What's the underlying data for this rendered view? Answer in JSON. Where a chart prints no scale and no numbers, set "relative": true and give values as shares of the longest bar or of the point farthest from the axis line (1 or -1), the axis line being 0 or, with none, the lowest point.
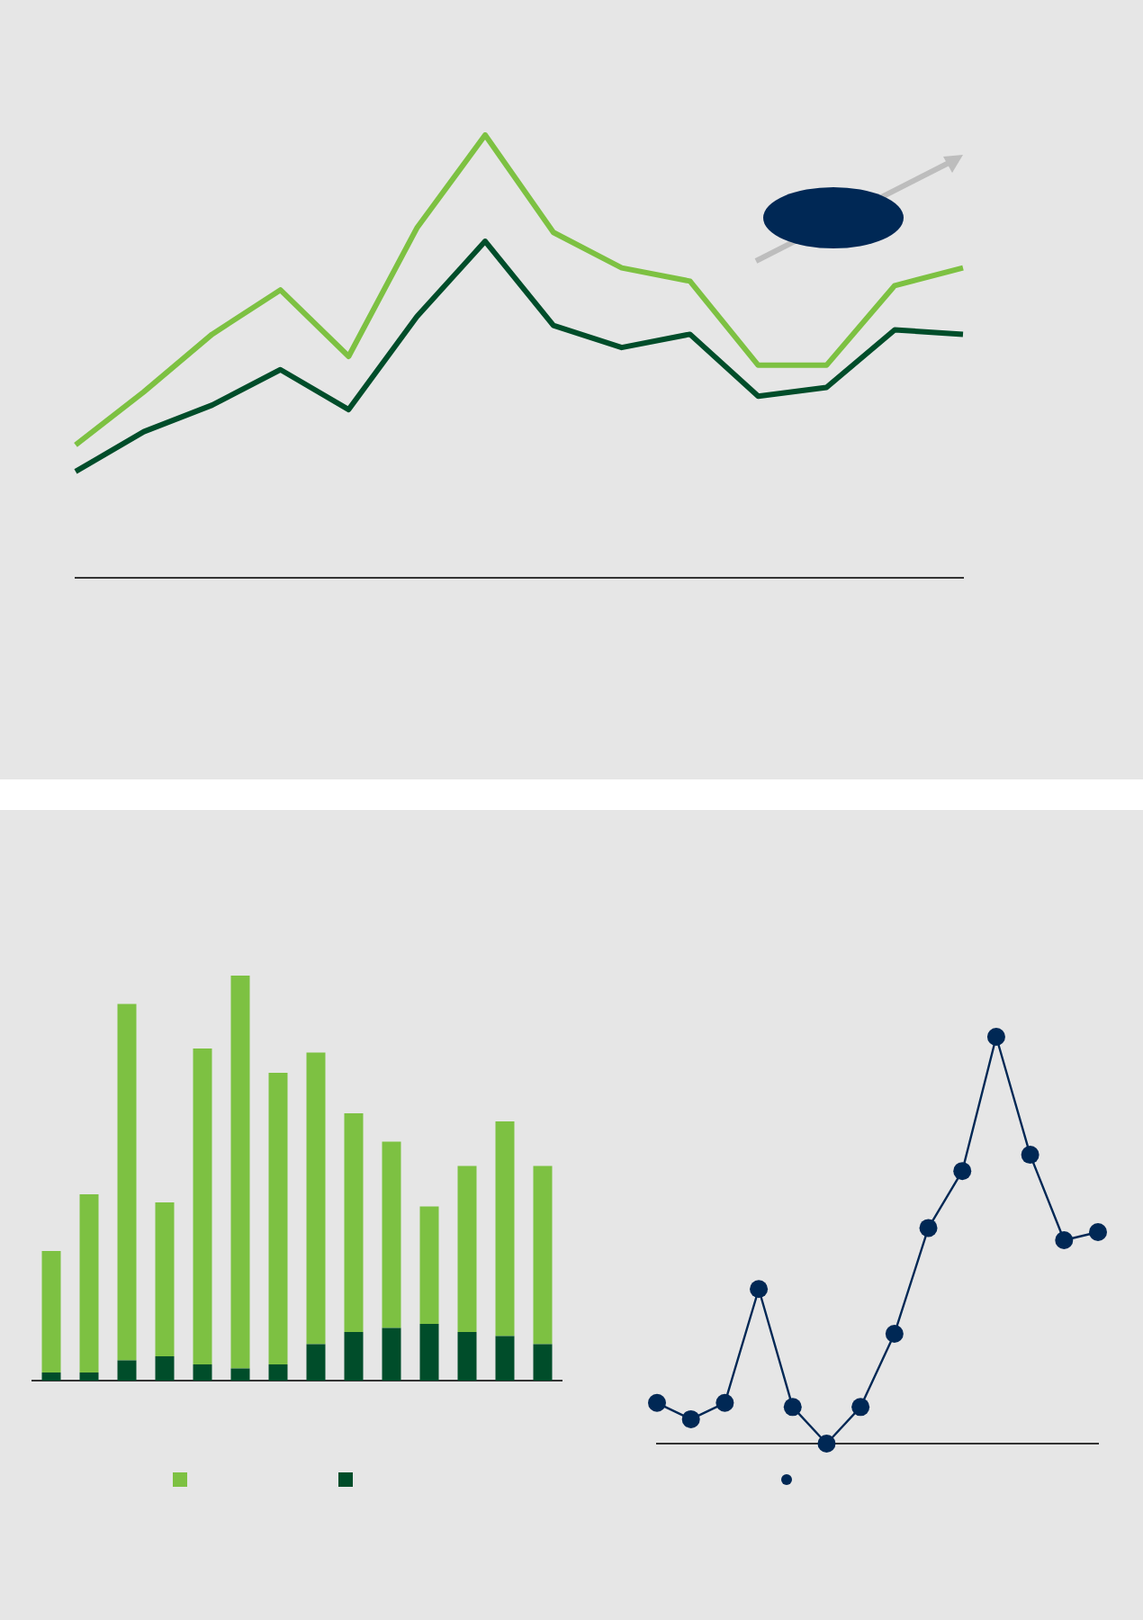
{
  "chart_data": [
    {
      "type": "line",
      "relative": true,
      "line_style": "solid",
      "categories": [
        null,
        null,
        null,
        null,
        null,
        null,
        null,
        null,
        null,
        null,
        null,
        null,
        null,
        null
      ],
      "series": [
        {
          "color": "#7dc142",
          "values": [
            0.3,
            0.42,
            0.55,
            0.65,
            0.5,
            0.79,
            1,
            0.78,
            0.7,
            0.67,
            0.48,
            0.48,
            0.66,
            0.7
          ]
        },
        {
          "color": "#004d2a",
          "values": [
            0.24,
            0.33,
            0.39,
            0.47,
            0.38,
            0.59,
            0.76,
            0.57,
            0.52,
            0.55,
            0.41,
            0.43,
            0.56,
            0.55
          ]
        }
      ]
    },
    {
      "type": "bar",
      "relative": true,
      "stacked": true,
      "categories": [
        null,
        null,
        null,
        null,
        null,
        null,
        null,
        null,
        null,
        null,
        null,
        null,
        null,
        null
      ],
      "series": [
        {
          "color": "#004d2a",
          "values": [
            0.02,
            0.02,
            0.05,
            0.06,
            0.04,
            0.03,
            0.04,
            0.09,
            0.12,
            0.13,
            0.14,
            0.12,
            0.11,
            0.09
          ]
        },
        {
          "color": "#7dc142",
          "values": [
            0.3,
            0.44,
            0.88,
            0.38,
            0.78,
            0.97,
            0.72,
            0.72,
            0.54,
            0.46,
            0.29,
            0.41,
            0.53,
            0.44
          ]
        }
      ]
    },
    {
      "type": "line",
      "relative": true,
      "marker": "circle",
      "line_style": "solid",
      "categories": [
        null,
        null,
        null,
        null,
        null,
        null,
        null,
        null,
        null,
        null,
        null,
        null,
        null,
        null
      ],
      "series": [
        {
          "color": "#002855",
          "values": [
            0.1,
            0.06,
            0.1,
            0.38,
            0.09,
            0,
            0.09,
            0.27,
            0.53,
            0.67,
            1,
            0.71,
            0.5,
            0.52
          ]
        }
      ]
    }
  ]
}
